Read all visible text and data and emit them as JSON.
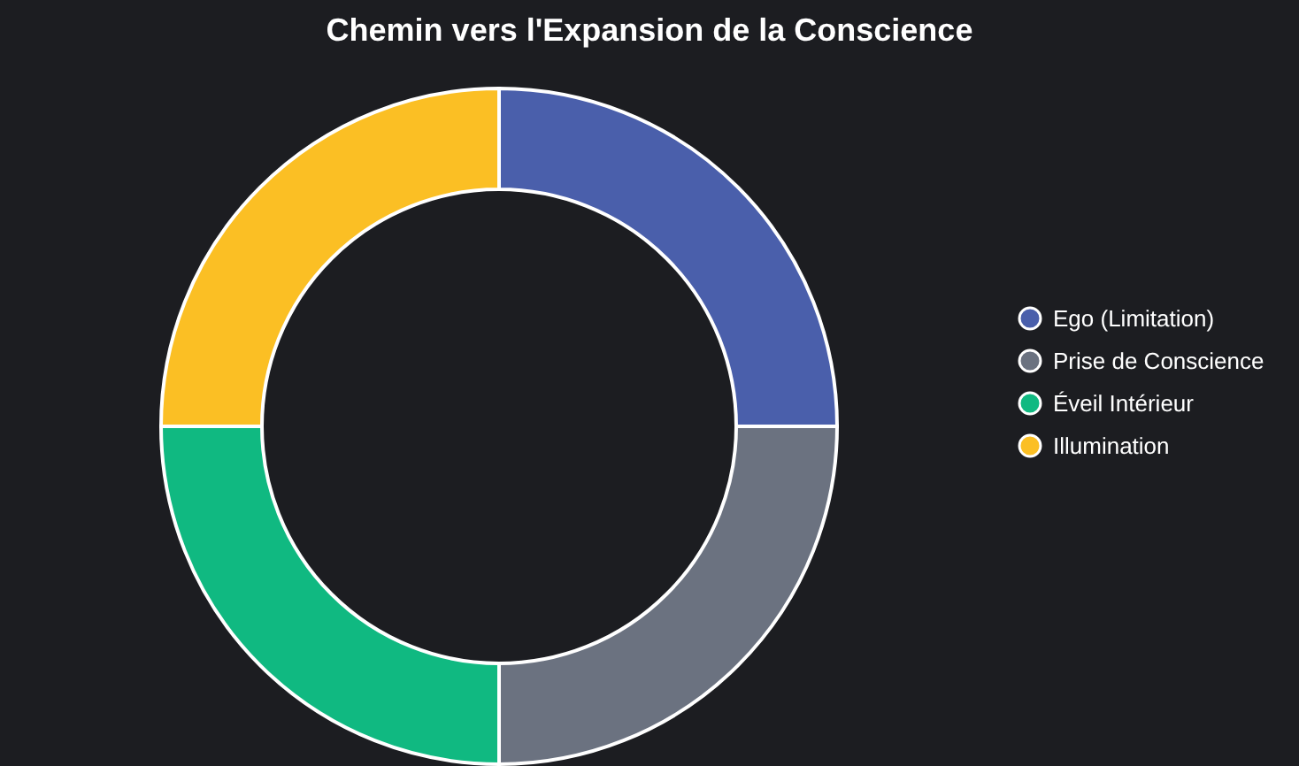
{
  "chart_data": {
    "type": "donut",
    "title": "Chemin vers l'Expansion de la Conscience",
    "categories": [
      "Ego (Limitation)",
      "Prise de Conscience",
      "Éveil Intérieur",
      "Illumination"
    ],
    "values": [
      25,
      25,
      25,
      25
    ],
    "colors": [
      "#4a5fab",
      "#6b7280",
      "#10b981",
      "#fbbf24"
    ],
    "legend": "right"
  }
}
